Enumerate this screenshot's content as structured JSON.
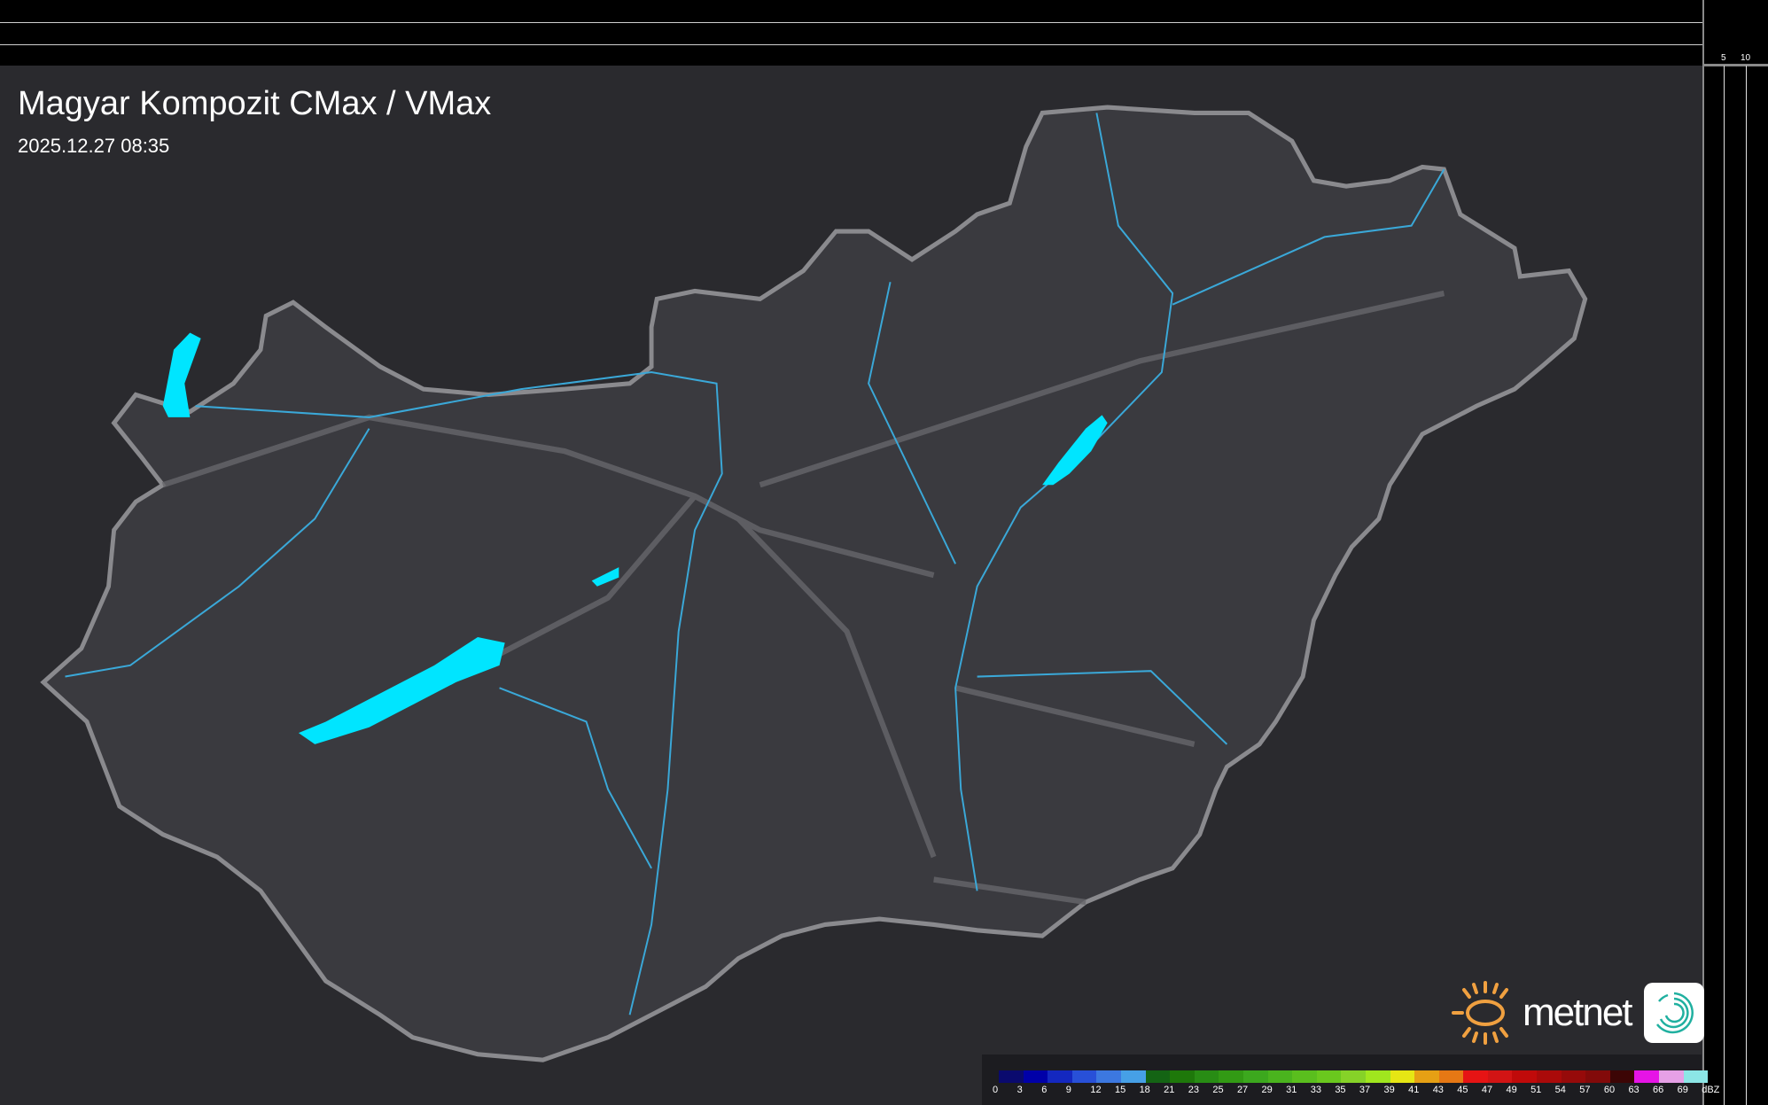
{
  "header": {
    "title": "Magyar Kompozit CMax / VMax",
    "timestamp": "2025.12.27 08:35"
  },
  "scales": {
    "top": [
      "10",
      "5"
    ],
    "right": [
      "5",
      "10"
    ]
  },
  "legend": {
    "unit": "dBZ",
    "labels": [
      "0",
      "3",
      "6",
      "9",
      "12",
      "15",
      "18",
      "21",
      "23",
      "25",
      "27",
      "29",
      "31",
      "33",
      "35",
      "37",
      "39",
      "41",
      "43",
      "45",
      "47",
      "49",
      "51",
      "54",
      "57",
      "60",
      "63",
      "66",
      "69"
    ],
    "colors": [
      "#0a0a6e",
      "#0000a8",
      "#1428c0",
      "#2850d8",
      "#3c78e0",
      "#46a0e6",
      "#146414",
      "#1e780a",
      "#288c14",
      "#329a14",
      "#3ca81e",
      "#4ab41e",
      "#5abe1e",
      "#6ac81e",
      "#86d228",
      "#a0e61e",
      "#e6e614",
      "#e6a014",
      "#e67814",
      "#e61414",
      "#d21414",
      "#c00a0a",
      "#aa0a0a",
      "#960a0a",
      "#820a0a",
      "#3c0505",
      "#e614e6",
      "#e6a0e6",
      "#8ce6e6"
    ]
  },
  "branding": {
    "logo": "metnet",
    "logo_icon": "sun-icon",
    "app_icon": "radar-swirl-icon"
  },
  "map_colors": {
    "land": "#3a3a3f",
    "border": "#8a8a8e",
    "rivers": "#3aa8d8",
    "lakes": "#00e5ff"
  }
}
